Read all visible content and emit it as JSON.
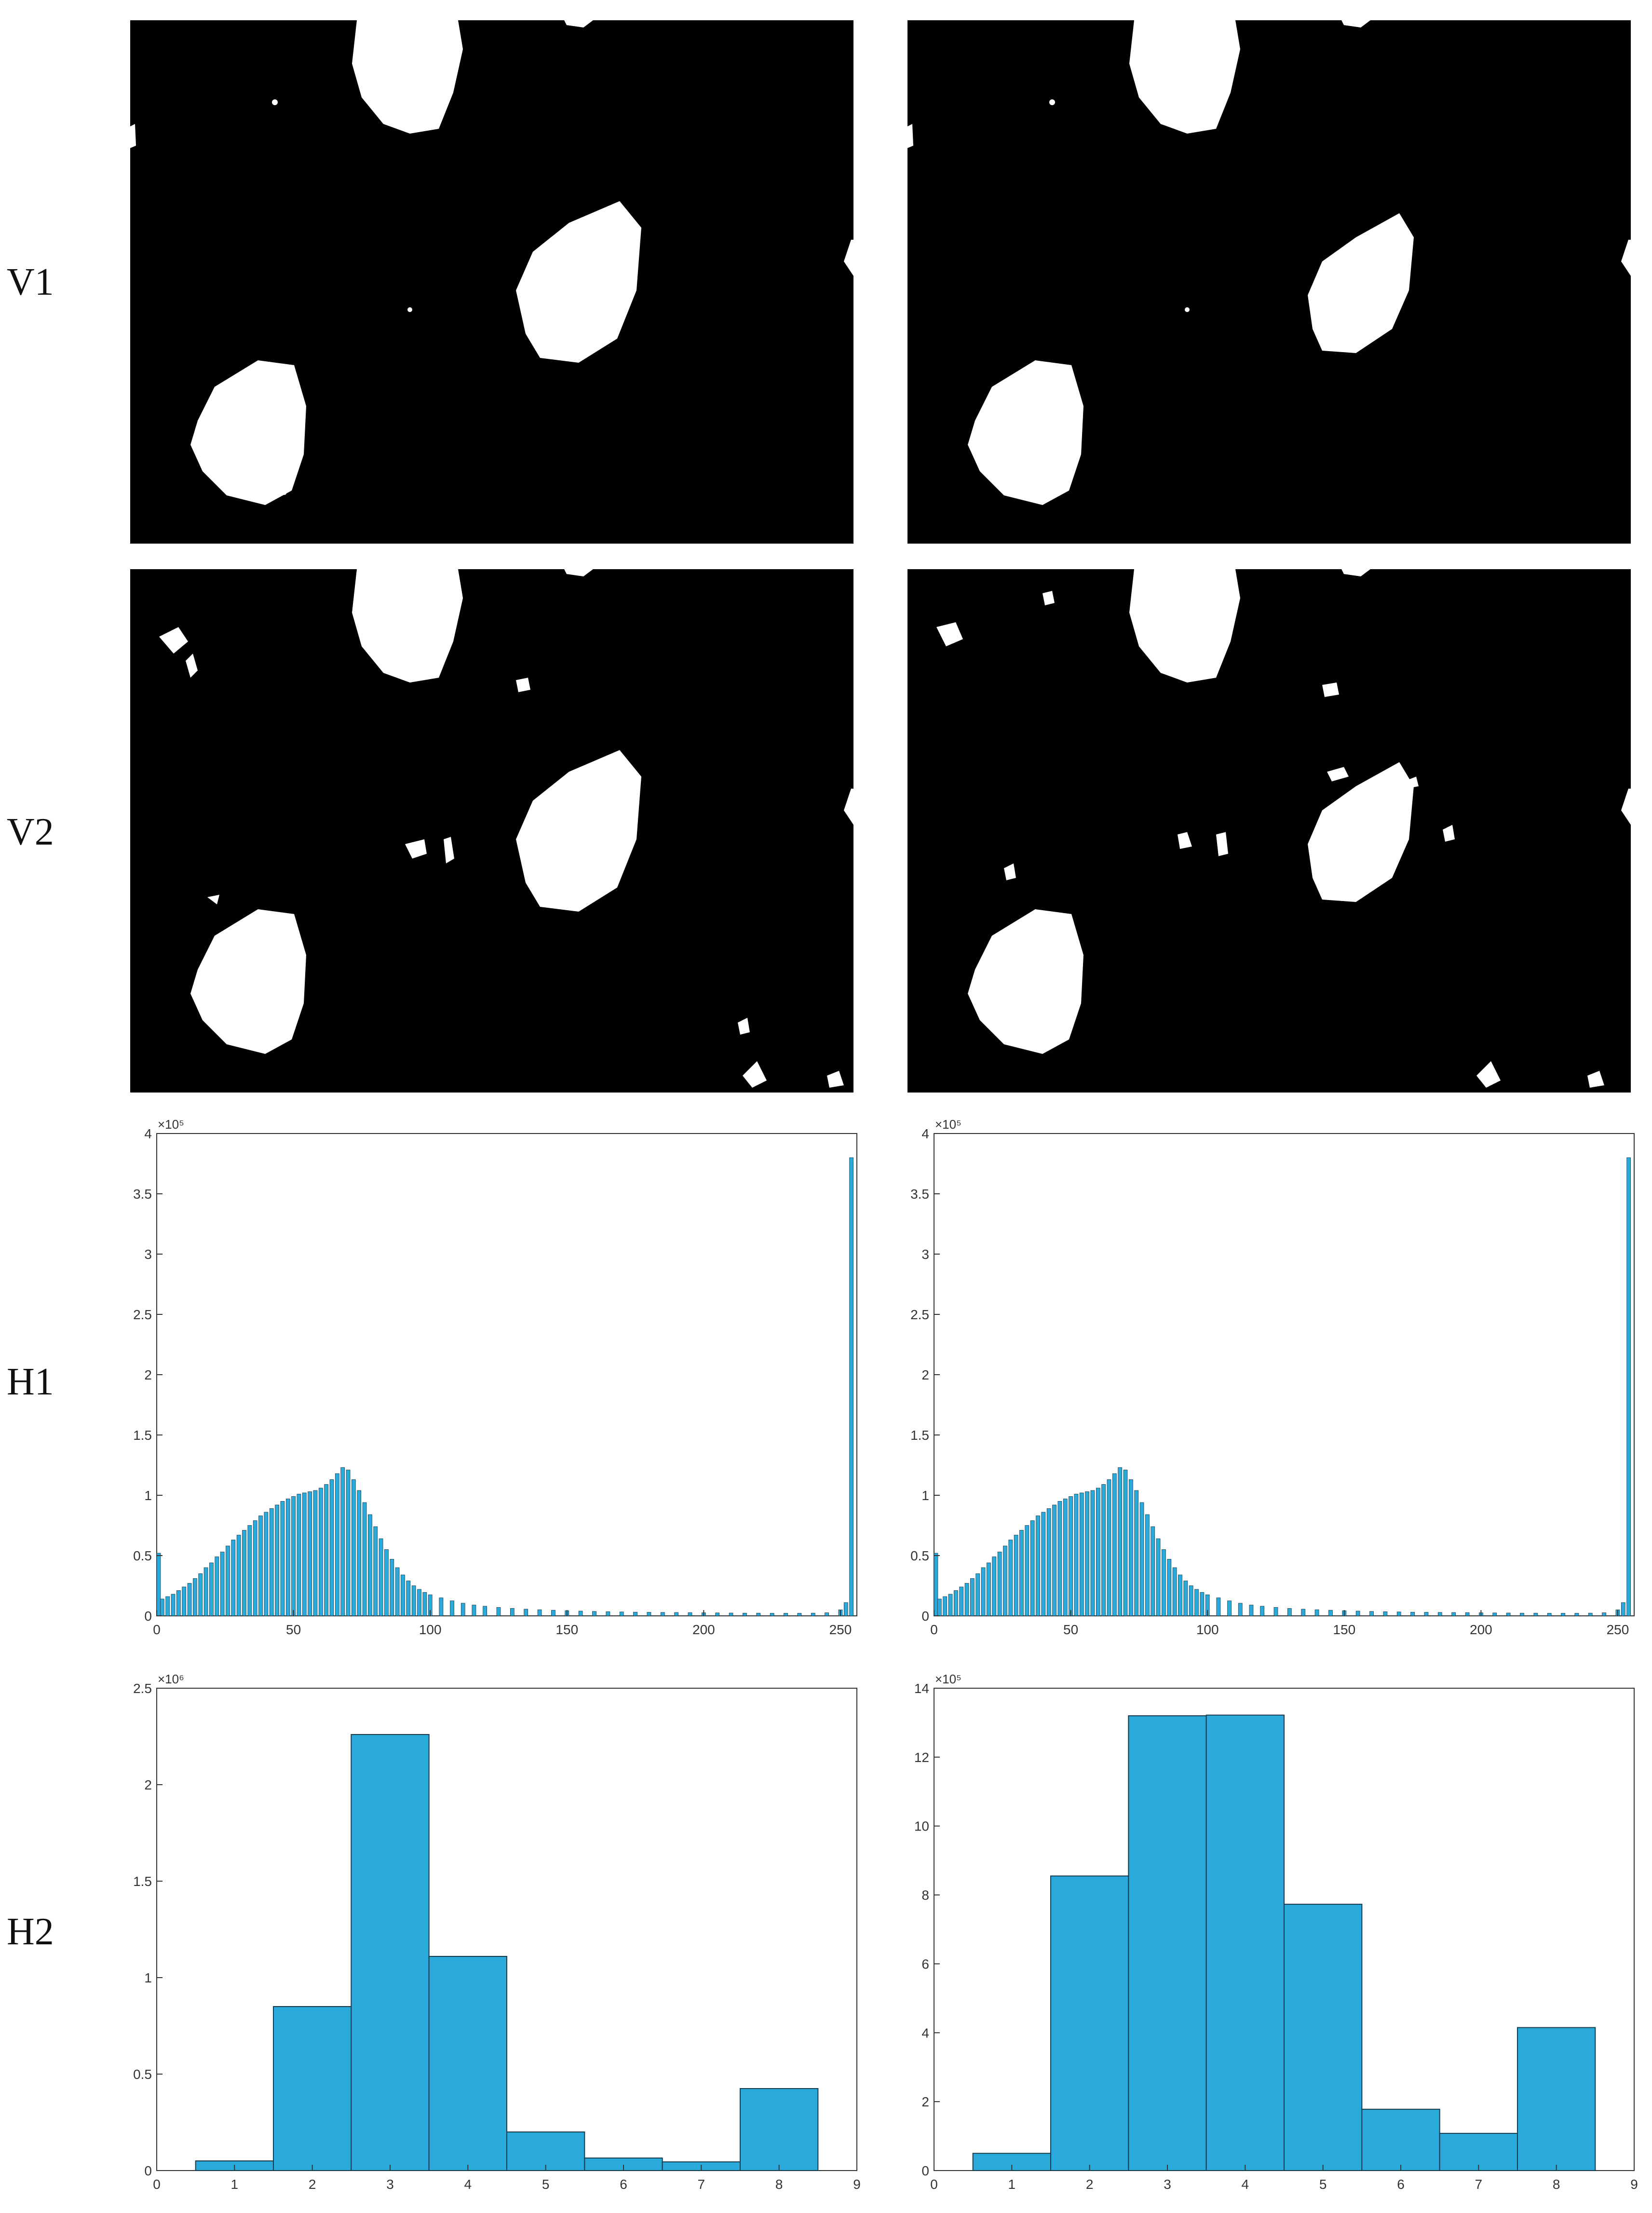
{
  "row_labels": [
    "V1",
    "V2",
    "H1",
    "H2"
  ],
  "colors": {
    "bar": "#2aa9db",
    "edge": "#1b3a4a",
    "axis": "#333333",
    "mask_bg": "#000000",
    "mask_fg": "#ffffff"
  },
  "chart_data": [
    {
      "id": "h1-left",
      "type": "bar",
      "title": "",
      "xlabel": "",
      "ylabel": "",
      "xlim": [
        0,
        255
      ],
      "ylim": [
        0,
        400000
      ],
      "xticks": [
        "0",
        "50",
        "100",
        "150",
        "200",
        "250"
      ],
      "yticks": [
        "0",
        "0.5",
        "1",
        "1.5",
        "2",
        "2.5",
        "3",
        "3.5",
        "4"
      ],
      "y_exponent": "×10⁵",
      "bins": [
        {
          "x": 0,
          "y": 52000
        },
        {
          "x": 2,
          "y": 14000
        },
        {
          "x": 4,
          "y": 16000
        },
        {
          "x": 6,
          "y": 18000
        },
        {
          "x": 8,
          "y": 21000
        },
        {
          "x": 10,
          "y": 24000
        },
        {
          "x": 12,
          "y": 27000
        },
        {
          "x": 14,
          "y": 31000
        },
        {
          "x": 16,
          "y": 35000
        },
        {
          "x": 18,
          "y": 40000
        },
        {
          "x": 20,
          "y": 44000
        },
        {
          "x": 22,
          "y": 49000
        },
        {
          "x": 24,
          "y": 53000
        },
        {
          "x": 26,
          "y": 58000
        },
        {
          "x": 28,
          "y": 63000
        },
        {
          "x": 30,
          "y": 67000
        },
        {
          "x": 32,
          "y": 71000
        },
        {
          "x": 34,
          "y": 75000
        },
        {
          "x": 36,
          "y": 79000
        },
        {
          "x": 38,
          "y": 83000
        },
        {
          "x": 40,
          "y": 86000
        },
        {
          "x": 42,
          "y": 89000
        },
        {
          "x": 44,
          "y": 92000
        },
        {
          "x": 46,
          "y": 95000
        },
        {
          "x": 48,
          "y": 97000
        },
        {
          "x": 50,
          "y": 99000
        },
        {
          "x": 52,
          "y": 101000
        },
        {
          "x": 54,
          "y": 102000
        },
        {
          "x": 56,
          "y": 103000
        },
        {
          "x": 58,
          "y": 104000
        },
        {
          "x": 60,
          "y": 106000
        },
        {
          "x": 62,
          "y": 109000
        },
        {
          "x": 64,
          "y": 113000
        },
        {
          "x": 66,
          "y": 118000
        },
        {
          "x": 68,
          "y": 123000
        },
        {
          "x": 70,
          "y": 121000
        },
        {
          "x": 72,
          "y": 113000
        },
        {
          "x": 74,
          "y": 104000
        },
        {
          "x": 76,
          "y": 94000
        },
        {
          "x": 78,
          "y": 84000
        },
        {
          "x": 80,
          "y": 74000
        },
        {
          "x": 82,
          "y": 64000
        },
        {
          "x": 84,
          "y": 55000
        },
        {
          "x": 86,
          "y": 47000
        },
        {
          "x": 88,
          "y": 40000
        },
        {
          "x": 90,
          "y": 34000
        },
        {
          "x": 92,
          "y": 29000
        },
        {
          "x": 94,
          "y": 25000
        },
        {
          "x": 96,
          "y": 22000
        },
        {
          "x": 98,
          "y": 19500
        },
        {
          "x": 100,
          "y": 17500
        },
        {
          "x": 104,
          "y": 15000
        },
        {
          "x": 108,
          "y": 12500
        },
        {
          "x": 112,
          "y": 10500
        },
        {
          "x": 116,
          "y": 9000
        },
        {
          "x": 120,
          "y": 8000
        },
        {
          "x": 125,
          "y": 7000
        },
        {
          "x": 130,
          "y": 6200
        },
        {
          "x": 135,
          "y": 5600
        },
        {
          "x": 140,
          "y": 5100
        },
        {
          "x": 145,
          "y": 4700
        },
        {
          "x": 150,
          "y": 4300
        },
        {
          "x": 155,
          "y": 4000
        },
        {
          "x": 160,
          "y": 3700
        },
        {
          "x": 165,
          "y": 3500
        },
        {
          "x": 170,
          "y": 3300
        },
        {
          "x": 175,
          "y": 3100
        },
        {
          "x": 180,
          "y": 3000
        },
        {
          "x": 185,
          "y": 2900
        },
        {
          "x": 190,
          "y": 2800
        },
        {
          "x": 195,
          "y": 2700
        },
        {
          "x": 200,
          "y": 2600
        },
        {
          "x": 205,
          "y": 2500
        },
        {
          "x": 210,
          "y": 2400
        },
        {
          "x": 215,
          "y": 2300
        },
        {
          "x": 220,
          "y": 2300
        },
        {
          "x": 225,
          "y": 2200
        },
        {
          "x": 230,
          "y": 2200
        },
        {
          "x": 235,
          "y": 2200
        },
        {
          "x": 240,
          "y": 2300
        },
        {
          "x": 245,
          "y": 2600
        },
        {
          "x": 250,
          "y": 5000
        },
        {
          "x": 252,
          "y": 11000
        },
        {
          "x": 254,
          "y": 380000
        }
      ]
    },
    {
      "id": "h1-right",
      "type": "bar",
      "title": "",
      "xlabel": "",
      "ylabel": "",
      "xlim": [
        0,
        255
      ],
      "ylim": [
        0,
        400000
      ],
      "xticks": [
        "0",
        "50",
        "100",
        "150",
        "200",
        "250"
      ],
      "yticks": [
        "0",
        "0.5",
        "1",
        "1.5",
        "2",
        "2.5",
        "3",
        "3.5",
        "4"
      ],
      "y_exponent": "×10⁵",
      "bins": [
        {
          "x": 0,
          "y": 52000
        },
        {
          "x": 2,
          "y": 14000
        },
        {
          "x": 4,
          "y": 16000
        },
        {
          "x": 6,
          "y": 18000
        },
        {
          "x": 8,
          "y": 21000
        },
        {
          "x": 10,
          "y": 24000
        },
        {
          "x": 12,
          "y": 27000
        },
        {
          "x": 14,
          "y": 31000
        },
        {
          "x": 16,
          "y": 35000
        },
        {
          "x": 18,
          "y": 40000
        },
        {
          "x": 20,
          "y": 44000
        },
        {
          "x": 22,
          "y": 49000
        },
        {
          "x": 24,
          "y": 53000
        },
        {
          "x": 26,
          "y": 58000
        },
        {
          "x": 28,
          "y": 63000
        },
        {
          "x": 30,
          "y": 67000
        },
        {
          "x": 32,
          "y": 71000
        },
        {
          "x": 34,
          "y": 75000
        },
        {
          "x": 36,
          "y": 79000
        },
        {
          "x": 38,
          "y": 83000
        },
        {
          "x": 40,
          "y": 86000
        },
        {
          "x": 42,
          "y": 89000
        },
        {
          "x": 44,
          "y": 92000
        },
        {
          "x": 46,
          "y": 95000
        },
        {
          "x": 48,
          "y": 97000
        },
        {
          "x": 50,
          "y": 99000
        },
        {
          "x": 52,
          "y": 101000
        },
        {
          "x": 54,
          "y": 102000
        },
        {
          "x": 56,
          "y": 103000
        },
        {
          "x": 58,
          "y": 104000
        },
        {
          "x": 60,
          "y": 106000
        },
        {
          "x": 62,
          "y": 109000
        },
        {
          "x": 64,
          "y": 113000
        },
        {
          "x": 66,
          "y": 118000
        },
        {
          "x": 68,
          "y": 123000
        },
        {
          "x": 70,
          "y": 121000
        },
        {
          "x": 72,
          "y": 113000
        },
        {
          "x": 74,
          "y": 104000
        },
        {
          "x": 76,
          "y": 94000
        },
        {
          "x": 78,
          "y": 84000
        },
        {
          "x": 80,
          "y": 74000
        },
        {
          "x": 82,
          "y": 64000
        },
        {
          "x": 84,
          "y": 55000
        },
        {
          "x": 86,
          "y": 47000
        },
        {
          "x": 88,
          "y": 40000
        },
        {
          "x": 90,
          "y": 34000
        },
        {
          "x": 92,
          "y": 29000
        },
        {
          "x": 94,
          "y": 25000
        },
        {
          "x": 96,
          "y": 22000
        },
        {
          "x": 98,
          "y": 19500
        },
        {
          "x": 100,
          "y": 17500
        },
        {
          "x": 104,
          "y": 15000
        },
        {
          "x": 108,
          "y": 12500
        },
        {
          "x": 112,
          "y": 10500
        },
        {
          "x": 116,
          "y": 9000
        },
        {
          "x": 120,
          "y": 8000
        },
        {
          "x": 125,
          "y": 7000
        },
        {
          "x": 130,
          "y": 6200
        },
        {
          "x": 135,
          "y": 5600
        },
        {
          "x": 140,
          "y": 5100
        },
        {
          "x": 145,
          "y": 4700
        },
        {
          "x": 150,
          "y": 4300
        },
        {
          "x": 155,
          "y": 4000
        },
        {
          "x": 160,
          "y": 3700
        },
        {
          "x": 165,
          "y": 3500
        },
        {
          "x": 170,
          "y": 3300
        },
        {
          "x": 175,
          "y": 3100
        },
        {
          "x": 180,
          "y": 3000
        },
        {
          "x": 185,
          "y": 2900
        },
        {
          "x": 190,
          "y": 2800
        },
        {
          "x": 195,
          "y": 2700
        },
        {
          "x": 200,
          "y": 2600
        },
        {
          "x": 205,
          "y": 2500
        },
        {
          "x": 210,
          "y": 2400
        },
        {
          "x": 215,
          "y": 2300
        },
        {
          "x": 220,
          "y": 2300
        },
        {
          "x": 225,
          "y": 2200
        },
        {
          "x": 230,
          "y": 2200
        },
        {
          "x": 235,
          "y": 2200
        },
        {
          "x": 240,
          "y": 2300
        },
        {
          "x": 245,
          "y": 2600
        },
        {
          "x": 250,
          "y": 5000
        },
        {
          "x": 252,
          "y": 11000
        },
        {
          "x": 254,
          "y": 380000
        }
      ]
    },
    {
      "id": "h2-left",
      "type": "bar",
      "title": "",
      "xlabel": "",
      "ylabel": "",
      "xlim": [
        0,
        9
      ],
      "ylim": [
        0,
        2500000
      ],
      "xticks": [
        "0",
        "1",
        "2",
        "3",
        "4",
        "5",
        "6",
        "7",
        "8",
        "9"
      ],
      "yticks": [
        "0",
        "0.5",
        "1",
        "1.5",
        "2",
        "2.5"
      ],
      "y_exponent": "×10⁶",
      "categories": [
        1,
        2,
        3,
        4,
        5,
        6,
        7,
        8
      ],
      "values": [
        50000,
        850000,
        2260000,
        1110000,
        200000,
        65000,
        45000,
        425000
      ]
    },
    {
      "id": "h2-right",
      "type": "bar",
      "title": "",
      "xlabel": "",
      "ylabel": "",
      "xlim": [
        0,
        9
      ],
      "ylim": [
        0,
        1400000
      ],
      "xticks": [
        "0",
        "1",
        "2",
        "3",
        "4",
        "5",
        "6",
        "7",
        "8",
        "9"
      ],
      "yticks": [
        "0",
        "2",
        "4",
        "6",
        "8",
        "10",
        "12",
        "14"
      ],
      "y_exponent": "×10⁵",
      "categories": [
        1,
        2,
        3,
        4,
        5,
        6,
        7,
        8
      ],
      "values": [
        50000,
        855000,
        1320000,
        1322000,
        773000,
        178000,
        108000,
        415000
      ]
    }
  ]
}
